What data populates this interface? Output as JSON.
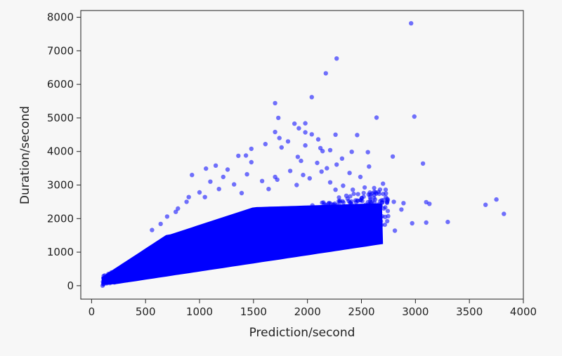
{
  "chart_data": {
    "type": "scatter",
    "title": "",
    "xlabel": "Prediction/second",
    "ylabel": "Duration/second",
    "xlim": [
      -100,
      4000
    ],
    "ylim": [
      -400,
      8200
    ],
    "xticks": [
      0,
      500,
      1000,
      1500,
      2000,
      2500,
      3000,
      3500,
      4000
    ],
    "xtick_labels": [
      "0",
      "500",
      "1000",
      "1500",
      "2000",
      "2500",
      "3000",
      "3500",
      "4000"
    ],
    "yticks": [
      0,
      1000,
      2000,
      3000,
      4000,
      5000,
      6000,
      7000,
      8000
    ],
    "ytick_labels": [
      "0",
      "1000",
      "2000",
      "3000",
      "4000",
      "5000",
      "6000",
      "7000",
      "8000"
    ],
    "grid": false,
    "legend": null,
    "marker_color": "#0000ff",
    "marker_alpha": 0.55,
    "series": [
      {
        "points": [
          [
            2960,
            7820
          ],
          [
            2270,
            6770
          ],
          [
            2170,
            6330
          ],
          [
            2040,
            5620
          ],
          [
            1700,
            5440
          ],
          [
            2990,
            5040
          ],
          [
            2640,
            5010
          ],
          [
            1730,
            5000
          ],
          [
            1880,
            4830
          ],
          [
            1980,
            4840
          ],
          [
            1920,
            4690
          ],
          [
            1980,
            4570
          ],
          [
            2040,
            4510
          ],
          [
            2260,
            4500
          ],
          [
            2460,
            4490
          ],
          [
            1700,
            4580
          ],
          [
            1740,
            4400
          ],
          [
            2100,
            4360
          ],
          [
            1820,
            4300
          ],
          [
            1610,
            4220
          ],
          [
            1980,
            4180
          ],
          [
            2120,
            4100
          ],
          [
            1760,
            4120
          ],
          [
            2210,
            4040
          ],
          [
            2140,
            4010
          ],
          [
            1480,
            4080
          ],
          [
            2560,
            3980
          ],
          [
            2410,
            3990
          ],
          [
            1430,
            3880
          ],
          [
            1360,
            3870
          ],
          [
            2790,
            3850
          ],
          [
            1910,
            3840
          ],
          [
            2320,
            3790
          ],
          [
            1940,
            3720
          ],
          [
            1480,
            3680
          ],
          [
            3070,
            3640
          ],
          [
            2090,
            3660
          ],
          [
            2270,
            3610
          ],
          [
            2570,
            3550
          ],
          [
            1150,
            3580
          ],
          [
            1060,
            3490
          ],
          [
            1260,
            3460
          ],
          [
            1840,
            3420
          ],
          [
            2130,
            3400
          ],
          [
            2390,
            3360
          ],
          [
            1440,
            3320
          ],
          [
            930,
            3300
          ],
          [
            1700,
            3240
          ],
          [
            2490,
            3240
          ],
          [
            2700,
            3040
          ],
          [
            3100,
            2490
          ],
          [
            3130,
            2440
          ],
          [
            2890,
            2460
          ],
          [
            2870,
            2270
          ],
          [
            3650,
            2410
          ],
          [
            3750,
            2570
          ],
          [
            3820,
            2140
          ],
          [
            3300,
            1900
          ],
          [
            3100,
            1880
          ],
          [
            2810,
            1640
          ],
          [
            2970,
            1860
          ],
          [
            2720,
            2050
          ],
          [
            2640,
            2180
          ],
          [
            2560,
            2300
          ],
          [
            2480,
            2260
          ],
          [
            2600,
            1880
          ],
          [
            2520,
            1760
          ],
          [
            2460,
            1600
          ],
          [
            2800,
            2500
          ],
          [
            2680,
            1920
          ],
          [
            1580,
            3120
          ],
          [
            1720,
            3160
          ],
          [
            1900,
            3000
          ],
          [
            2020,
            3200
          ],
          [
            2210,
            3080
          ],
          [
            2330,
            2980
          ],
          [
            2420,
            2860
          ],
          [
            1320,
            3020
          ],
          [
            1180,
            2880
          ],
          [
            1000,
            2780
          ],
          [
            880,
            2500
          ],
          [
            800,
            2300
          ],
          [
            1050,
            2640
          ],
          [
            1390,
            2760
          ],
          [
            1640,
            2880
          ],
          [
            1220,
            3240
          ],
          [
            2260,
            2860
          ],
          [
            2580,
            2640
          ],
          [
            2660,
            2420
          ],
          [
            2360,
            2680
          ],
          [
            1100,
            3100
          ],
          [
            1960,
            3300
          ],
          [
            2180,
            3500
          ],
          [
            2620,
            2800
          ],
          [
            2740,
            2520
          ],
          [
            900,
            2640
          ],
          [
            780,
            2200
          ],
          [
            700,
            2060
          ],
          [
            640,
            1840
          ],
          [
            560,
            1660
          ]
        ]
      }
    ]
  }
}
